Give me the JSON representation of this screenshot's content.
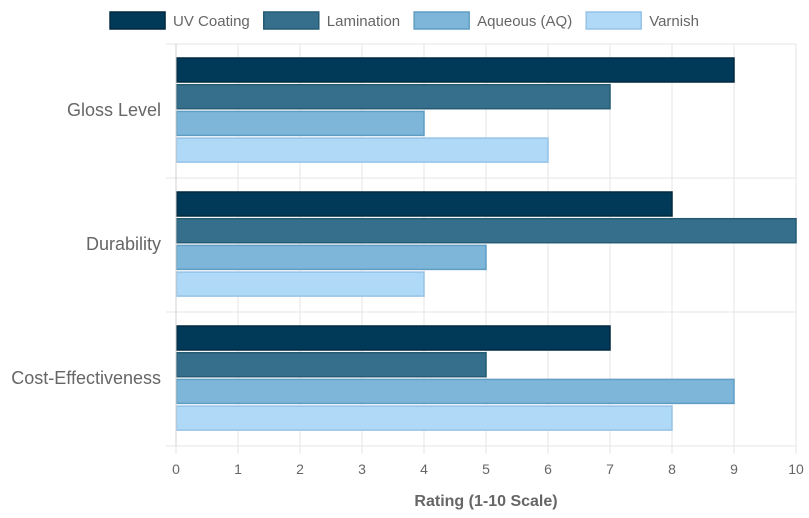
{
  "chart_data": {
    "type": "bar",
    "orientation": "horizontal",
    "categories": [
      "Gloss Level",
      "Durability",
      "Cost-Effectiveness"
    ],
    "series": [
      {
        "name": "UV Coating",
        "values": [
          9,
          8,
          7
        ],
        "color": "#003A58",
        "border": "#00293f"
      },
      {
        "name": "Lamination",
        "values": [
          7,
          10,
          5
        ],
        "color": "#356F8C",
        "border": "#255a73"
      },
      {
        "name": "Aqueous (AQ)",
        "values": [
          4,
          5,
          9
        ],
        "color": "#7EB6D9",
        "border": "#5f9dc2"
      },
      {
        "name": "Varnish",
        "values": [
          6,
          4,
          8
        ],
        "color": "#B0D8F7",
        "border": "#95c3e6"
      }
    ],
    "xlabel": "Rating (1-10 Scale)",
    "ylabel": "",
    "xlim": [
      0,
      10
    ],
    "xticks": [
      0,
      1,
      2,
      3,
      4,
      5,
      6,
      7,
      8,
      9,
      10
    ],
    "grid": true,
    "legend_position": "top"
  }
}
